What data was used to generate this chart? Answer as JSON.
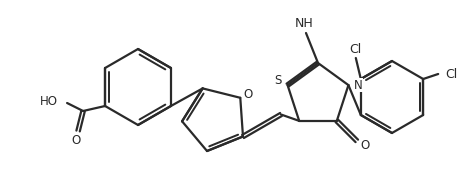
{
  "bg_color": "#ffffff",
  "line_color": "#2a2a2a",
  "line_width": 1.6,
  "font_size": 8.5,
  "figsize": [
    4.65,
    1.87
  ],
  "dpi": 100,
  "xlim": [
    0,
    465
  ],
  "ylim": [
    0,
    187
  ]
}
